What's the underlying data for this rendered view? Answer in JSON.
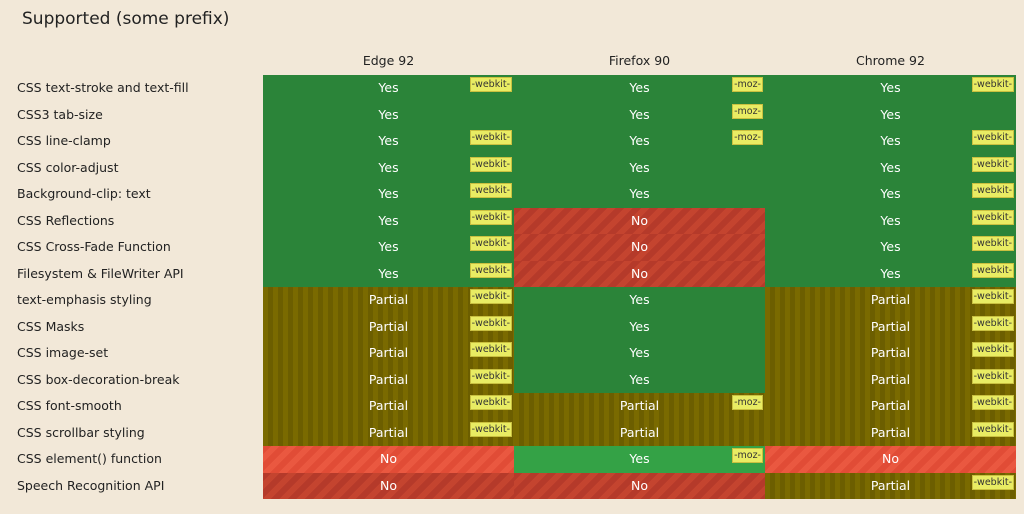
{
  "header": {
    "title": "Supported (some prefix)"
  },
  "table": {
    "columns": [
      "Edge 92",
      "Firefox 90",
      "Chrome 92"
    ],
    "rows": [
      {
        "feature": "CSS text-stroke and text-fill",
        "cells": [
          {
            "status": "Yes",
            "prefix": "-webkit-"
          },
          {
            "status": "Yes",
            "prefix": "-moz-"
          },
          {
            "status": "Yes",
            "prefix": "-webkit-"
          }
        ]
      },
      {
        "feature": "CSS3 tab-size",
        "cells": [
          {
            "status": "Yes"
          },
          {
            "status": "Yes",
            "prefix": "-moz-"
          },
          {
            "status": "Yes"
          }
        ]
      },
      {
        "feature": "CSS line-clamp",
        "cells": [
          {
            "status": "Yes",
            "prefix": "-webkit-"
          },
          {
            "status": "Yes",
            "prefix": "-moz-"
          },
          {
            "status": "Yes",
            "prefix": "-webkit-"
          }
        ]
      },
      {
        "feature": "CSS color-adjust",
        "cells": [
          {
            "status": "Yes",
            "prefix": "-webkit-"
          },
          {
            "status": "Yes"
          },
          {
            "status": "Yes",
            "prefix": "-webkit-"
          }
        ]
      },
      {
        "feature": "Background-clip: text",
        "cells": [
          {
            "status": "Yes",
            "prefix": "-webkit-"
          },
          {
            "status": "Yes"
          },
          {
            "status": "Yes",
            "prefix": "-webkit-"
          }
        ]
      },
      {
        "feature": "CSS Reflections",
        "cells": [
          {
            "status": "Yes",
            "prefix": "-webkit-"
          },
          {
            "status": "No"
          },
          {
            "status": "Yes",
            "prefix": "-webkit-"
          }
        ]
      },
      {
        "feature": "CSS Cross-Fade Function",
        "cells": [
          {
            "status": "Yes",
            "prefix": "-webkit-"
          },
          {
            "status": "No"
          },
          {
            "status": "Yes",
            "prefix": "-webkit-"
          }
        ]
      },
      {
        "feature": "Filesystem & FileWriter API",
        "cells": [
          {
            "status": "Yes",
            "prefix": "-webkit-"
          },
          {
            "status": "No"
          },
          {
            "status": "Yes",
            "prefix": "-webkit-"
          }
        ]
      },
      {
        "feature": "text-emphasis styling",
        "cells": [
          {
            "status": "Partial",
            "prefix": "-webkit-"
          },
          {
            "status": "Yes"
          },
          {
            "status": "Partial",
            "prefix": "-webkit-"
          }
        ]
      },
      {
        "feature": "CSS Masks",
        "cells": [
          {
            "status": "Partial",
            "prefix": "-webkit-"
          },
          {
            "status": "Yes"
          },
          {
            "status": "Partial",
            "prefix": "-webkit-"
          }
        ]
      },
      {
        "feature": "CSS image-set",
        "cells": [
          {
            "status": "Partial",
            "prefix": "-webkit-"
          },
          {
            "status": "Yes"
          },
          {
            "status": "Partial",
            "prefix": "-webkit-"
          }
        ]
      },
      {
        "feature": "CSS box-decoration-break",
        "cells": [
          {
            "status": "Partial",
            "prefix": "-webkit-"
          },
          {
            "status": "Yes"
          },
          {
            "status": "Partial",
            "prefix": "-webkit-"
          }
        ]
      },
      {
        "feature": "CSS font-smooth",
        "cells": [
          {
            "status": "Partial",
            "prefix": "-webkit-"
          },
          {
            "status": "Partial",
            "prefix": "-moz-"
          },
          {
            "status": "Partial",
            "prefix": "-webkit-"
          }
        ]
      },
      {
        "feature": "CSS scrollbar styling",
        "cells": [
          {
            "status": "Partial",
            "prefix": "-webkit-"
          },
          {
            "status": "Partial"
          },
          {
            "status": "Partial",
            "prefix": "-webkit-"
          }
        ]
      },
      {
        "feature": "CSS element() function",
        "cells": [
          {
            "status": "No"
          },
          {
            "status": "Yes",
            "prefix": "-moz-"
          },
          {
            "status": "No"
          }
        ]
      },
      {
        "feature": "Speech Recognition API",
        "cells": [
          {
            "status": "No"
          },
          {
            "status": "No"
          },
          {
            "status": "Partial",
            "prefix": "-webkit-"
          }
        ]
      }
    ]
  }
}
